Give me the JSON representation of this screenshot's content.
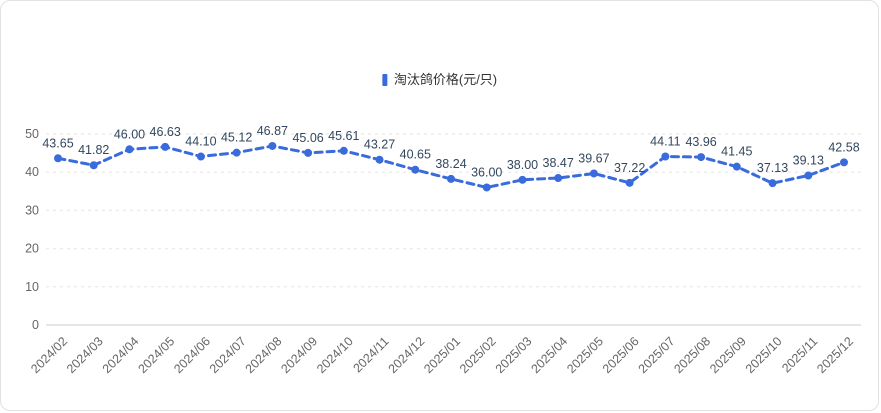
{
  "legend": {
    "items": [
      {
        "label": "淘汰鸽价格(元/只)",
        "color": "#3A6BDC"
      }
    ]
  },
  "chart_data": {
    "type": "line",
    "title": "",
    "categories": [
      "2024/02",
      "2024/03",
      "2024/04",
      "2024/05",
      "2024/06",
      "2024/07",
      "2024/08",
      "2024/09",
      "2024/10",
      "2024/11",
      "2024/12",
      "2025/01",
      "2025/02",
      "2025/03",
      "2025/04",
      "2025/05",
      "2025/06",
      "2025/07",
      "2025/08",
      "2025/09",
      "2025/10",
      "2025/11",
      "2025/12"
    ],
    "series": [
      {
        "name": "淘汰鸽价格(元/只)",
        "values": [
          43.65,
          41.82,
          46.0,
          46.63,
          44.1,
          45.12,
          46.87,
          45.06,
          45.61,
          43.27,
          40.65,
          38.24,
          36.0,
          38.0,
          38.47,
          39.67,
          37.22,
          44.11,
          43.96,
          41.45,
          37.13,
          39.13,
          42.58
        ]
      }
    ],
    "xlabel": "",
    "ylabel": "",
    "ylim": [
      0,
      50
    ],
    "yticks": [
      0,
      10,
      20,
      30,
      40,
      50
    ],
    "grid": true,
    "legend_position": "top-center",
    "line_style": "dashed",
    "show_value_labels": true,
    "value_label_decimals": 2,
    "colors": {
      "line": "#3A6BDC",
      "marker": "#3A6BDC",
      "value_label": "#33475E",
      "axis_label": "#666666",
      "gridline": "#ececec",
      "axis_line": "#cccccc"
    }
  }
}
